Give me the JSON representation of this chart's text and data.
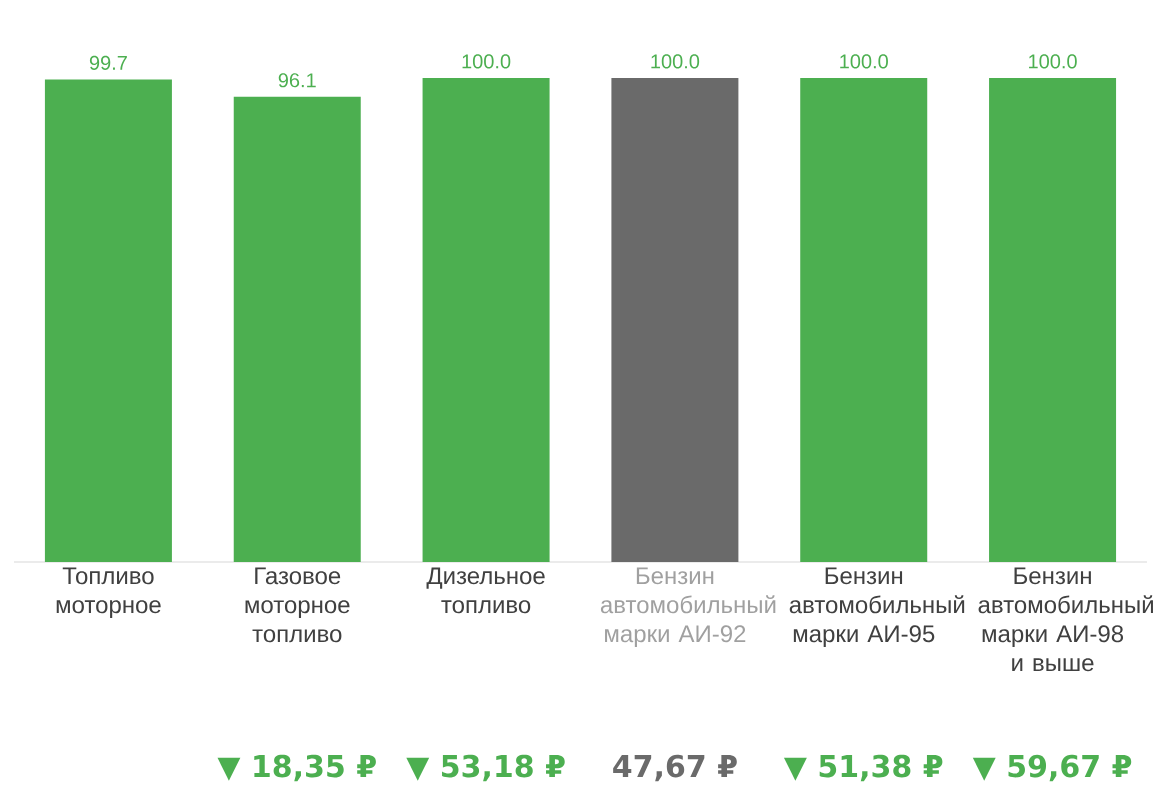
{
  "chart_data": {
    "type": "bar",
    "categories": [
      "Топливо моторное",
      "Газовое моторное топливо",
      "Дизельное топливо",
      "Бензин автомобильный марки АИ-92",
      "Бензин автомобильный марки АИ-95",
      "Бензин автомобильный марки АИ-98 и выше"
    ],
    "values": [
      99.7,
      96.1,
      100.0,
      100.0,
      100.0,
      100.0
    ],
    "value_labels": [
      "99.7",
      "96.1",
      "100.0",
      "100.0",
      "100.0",
      "100.0"
    ],
    "colors": [
      "#4caf50",
      "#4caf50",
      "#4caf50",
      "#6a6a6a",
      "#4caf50",
      "#4caf50"
    ],
    "annotations": [
      "▼ 18,35 ₽",
      "▼ 53,18 ₽",
      "47,67 ₽",
      "▼ 51,38 ₽",
      "▼ 59,67 ₽"
    ]
  }
}
